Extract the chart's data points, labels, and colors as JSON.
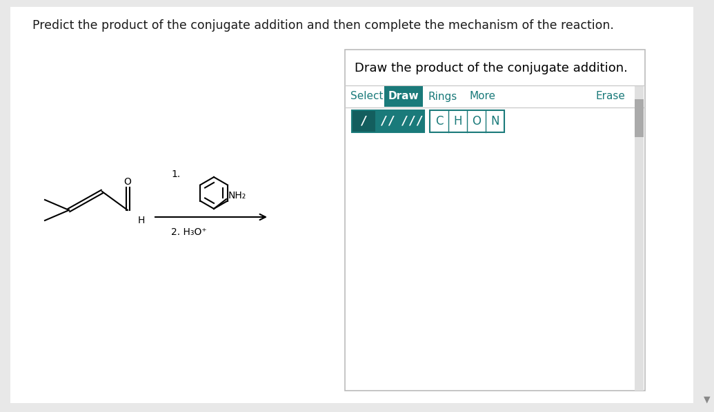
{
  "title": "Predict the product of the conjugate addition and then complete the mechanism of the reaction.",
  "title_color": "#1a1a1a",
  "bg_color": "#e8e8e8",
  "panel_bg": "#ffffff",
  "panel_title": "Draw the product of the conjugate addition.",
  "toolbar_items": [
    "Select",
    "Draw",
    "Rings",
    "More",
    "Erase"
  ],
  "active_tab": "Draw",
  "teal_color": "#1a7a7a",
  "bond_labels": [
    "/",
    "//",
    "///"
  ],
  "atom_labels": [
    "C",
    "H",
    "O",
    "N"
  ],
  "reaction_label1": "1.",
  "reaction_label2": "2. H₃O⁺"
}
